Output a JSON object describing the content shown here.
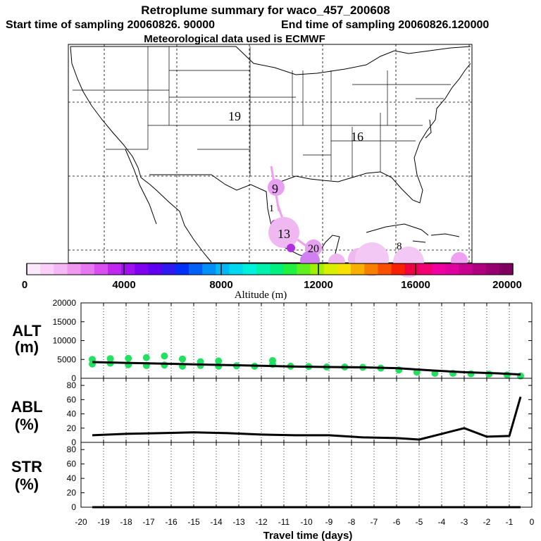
{
  "header": {
    "title": "Retroplume summary for waco_457_200608",
    "start_label": "Start time of sampling 20060826. 90000",
    "end_label": "End time of sampling 20060826.120000",
    "met_label": "Meteorological data used is ECMWF"
  },
  "map": {
    "day_labels": [
      "19",
      "16",
      "9",
      "1",
      "13",
      "8",
      "20"
    ]
  },
  "colorbar": {
    "label": "Altitude (m)",
    "ticks": [
      "0",
      "4000",
      "8000",
      "12000",
      "16000",
      "20000"
    ],
    "colors": [
      "#fce8fc",
      "#f8d0f8",
      "#f4b8f4",
      "#f098f0",
      "#e878f0",
      "#d850f0",
      "#c028f0",
      "#a010f0",
      "#8000f0",
      "#6000f0",
      "#3018f0",
      "#0030f8",
      "#0060f8",
      "#0090f8",
      "#00b8f8",
      "#00d8f0",
      "#00f0e0",
      "#00f0b0",
      "#00f080",
      "#20f040",
      "#60f020",
      "#a0f000",
      "#d8f000",
      "#f8e000",
      "#f8b000",
      "#f88000",
      "#f85000",
      "#f82000",
      "#f00040",
      "#f00070",
      "#f000a0",
      "#e000a0",
      "#c80090",
      "#b00080",
      "#980070",
      "#800060"
    ],
    "range": [
      0,
      20000
    ]
  },
  "chart_data": {
    "type": "line",
    "xlabel": "Travel time (days)",
    "xlim": [
      -20,
      0
    ],
    "x_ticks": [
      "-20",
      "-19",
      "-18",
      "-17",
      "-16",
      "-15",
      "-14",
      "-13",
      "-12",
      "-11",
      "-10",
      "-9",
      "-8",
      "-7",
      "-6",
      "-5",
      "-4",
      "-3",
      "-2",
      "-1",
      "0"
    ],
    "panels": [
      {
        "name": "ALT",
        "ylabel_top": "ALT",
        "ylabel_bottom": "(m)",
        "ylim": [
          0,
          20000
        ],
        "yticks": [
          "0",
          "5000",
          "10000",
          "15000",
          "20000"
        ],
        "x": [
          -19.5,
          -18,
          -16.5,
          -15,
          -13.5,
          -12,
          -10.5,
          -9,
          -7.5,
          -6,
          -4.5,
          -3,
          -1.5,
          -0.5
        ],
        "y": [
          4300,
          4100,
          3900,
          3700,
          3500,
          3300,
          3100,
          3000,
          2900,
          2700,
          2100,
          1600,
          1300,
          1000
        ],
        "points": {
          "x": [
            -19.5,
            -19.5,
            -18.7,
            -18.7,
            -17.9,
            -17.9,
            -17.1,
            -17.1,
            -16.3,
            -16.3,
            -15.5,
            -15.5,
            -14.7,
            -14.7,
            -13.9,
            -13.9,
            -13.1,
            -12.3,
            -11.5,
            -11.5,
            -10.7,
            -9.9,
            -9.1,
            -8.3,
            -7.5,
            -6.7,
            -5.9,
            -5.1,
            -4.3,
            -3.5,
            -2.7,
            -1.9,
            -1.1,
            -0.5
          ],
          "y": [
            3800,
            5000,
            4000,
            5200,
            3600,
            5300,
            3400,
            5500,
            3500,
            5900,
            3200,
            5100,
            3400,
            4400,
            3200,
            4600,
            3300,
            3200,
            3700,
            4700,
            3200,
            3100,
            3000,
            3000,
            2900,
            2700,
            2200,
            1600,
            1300,
            1300,
            1200,
            1100,
            900,
            600
          ]
        }
      },
      {
        "name": "ABL",
        "ylabel_top": "ABL",
        "ylabel_bottom": "(%)",
        "ylim": [
          0,
          90
        ],
        "yticks": [
          "0",
          "20",
          "40",
          "60",
          "80"
        ],
        "x": [
          -19.5,
          -18,
          -16.5,
          -15,
          -13.5,
          -12,
          -10.5,
          -9,
          -7.5,
          -6,
          -5,
          -4,
          -3,
          -2,
          -1,
          -0.5
        ],
        "y": [
          10,
          12,
          13,
          14,
          13,
          11,
          10,
          10,
          7,
          6,
          4,
          12,
          20,
          8,
          9,
          64
        ]
      },
      {
        "name": "STR",
        "ylabel_top": "STR",
        "ylabel_bottom": "(%)",
        "ylim": [
          0,
          90
        ],
        "yticks": [
          "0",
          "20",
          "40",
          "60",
          "80"
        ],
        "x": [
          -19.5,
          -0.5
        ],
        "y": [
          0,
          0
        ]
      }
    ]
  }
}
